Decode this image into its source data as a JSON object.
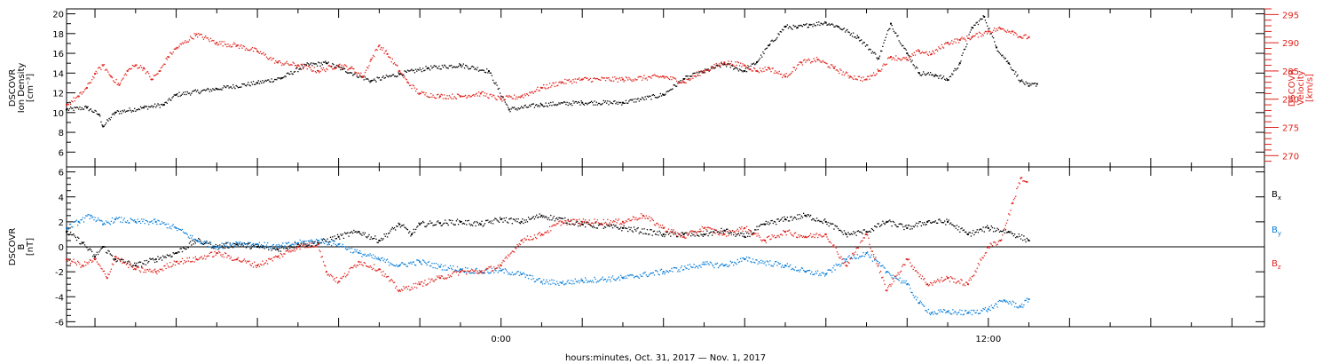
{
  "figure": {
    "xlabel": "hours:minutes, Oct. 31, 2017 — Nov.  1, 2017"
  },
  "colors": {
    "black": "#000000",
    "red": "#e0231c",
    "blue": "#0a7ed8"
  },
  "chart_data": [
    {
      "type": "scatter",
      "panel": "top",
      "ylabel_left": [
        "DSCOVR",
        "Ion  Density",
        "[cm⁻³]"
      ],
      "ylabel_right": [
        "DSCOVR",
        "Velocity",
        "[km/s]"
      ],
      "x_unit": "hours relative to 2017-11-01 00:00",
      "xlim": [
        -10.7,
        18.8
      ],
      "x_ticklabels": [
        {
          "x": 0,
          "label": "0:00"
        },
        {
          "x": 12,
          "label": "12:00"
        }
      ],
      "ylim_left": [
        4.5,
        20.5
      ],
      "yticks_left": [
        6,
        8,
        10,
        12,
        14,
        16,
        18,
        20
      ],
      "ylim_right": [
        268,
        296
      ],
      "yticks_right": [
        270,
        275,
        280,
        285,
        290,
        295
      ],
      "grid": false,
      "series": [
        {
          "axis": "left",
          "color": "black",
          "x": [
            -10.7,
            -10.2,
            -9.9,
            -9.8,
            -9.5,
            -8.8,
            -8.3,
            -8.0,
            -7.0,
            -6.0,
            -5.4,
            -4.8,
            -4.3,
            -3.9,
            -3.2,
            -2.5,
            -1.8,
            -1.0,
            -0.3,
            0.2,
            1.0,
            2.0,
            3.0,
            4.0,
            4.5,
            5.5,
            6.0,
            6.3,
            6.6,
            7.0,
            7.3,
            7.6,
            8.0,
            8.3,
            8.8,
            9.3,
            9.6,
            10.0,
            10.3,
            10.7,
            11.0,
            11.3,
            11.6,
            11.9,
            12.2,
            12.5,
            12.8,
            13.0,
            13.2
          ],
          "y": [
            10.3,
            10.5,
            9.8,
            8.6,
            10.0,
            10.5,
            10.8,
            11.8,
            12.4,
            13.0,
            13.5,
            14.8,
            15.0,
            14.4,
            13.2,
            13.9,
            14.5,
            14.8,
            14.2,
            10.3,
            10.8,
            11.0,
            11.0,
            11.8,
            13.4,
            14.9,
            14.2,
            15.1,
            16.8,
            18.7,
            18.6,
            18.9,
            19.1,
            18.7,
            17.6,
            15.5,
            19.0,
            16.0,
            14.0,
            13.8,
            13.3,
            15.0,
            18.6,
            19.7,
            16.6,
            15.0,
            13.2,
            12.7,
            12.9
          ]
        },
        {
          "axis": "right",
          "color": "red",
          "x": [
            -10.7,
            -10.4,
            -10.2,
            -10.0,
            -9.8,
            -9.6,
            -9.4,
            -9.2,
            -9.0,
            -8.8,
            -8.6,
            -8.4,
            -8.2,
            -8.0,
            -7.5,
            -7.0,
            -6.5,
            -6.0,
            -5.5,
            -5.0,
            -4.5,
            -4.0,
            -3.7,
            -3.4,
            -3.2,
            -3.0,
            -2.8,
            -2.5,
            -2.3,
            -2.0,
            -1.5,
            -1.0,
            -0.5,
            0.0,
            0.5,
            1.0,
            1.5,
            2.0,
            3.0,
            4.0,
            4.5,
            5.0,
            5.5,
            6.0,
            6.3,
            6.6,
            7.0,
            7.4,
            7.8,
            8.2,
            8.6,
            9.0,
            9.3,
            9.6,
            10.0,
            10.3,
            10.6,
            11.0,
            11.3,
            11.6,
            12.0,
            12.3,
            12.6,
            12.8,
            13.0
          ],
          "y": [
            279.0,
            280.5,
            282.0,
            284.5,
            286.0,
            284.0,
            282.5,
            285.0,
            286.0,
            285.5,
            283.5,
            285.0,
            287.5,
            289.0,
            291.5,
            290.0,
            289.5,
            288.5,
            286.5,
            286.0,
            285.0,
            286.0,
            285.5,
            284.0,
            287.0,
            289.5,
            288.0,
            285.0,
            283.0,
            281.0,
            280.5,
            280.5,
            281.0,
            280.0,
            280.5,
            282.0,
            283.0,
            283.5,
            283.5,
            284.0,
            283.0,
            285.0,
            286.5,
            286.0,
            285.0,
            285.5,
            284.0,
            286.5,
            287.0,
            285.5,
            284.0,
            283.5,
            285.0,
            287.5,
            287.0,
            288.5,
            288.0,
            290.0,
            290.5,
            291.0,
            292.0,
            292.5,
            292.0,
            291.0,
            291.0
          ]
        }
      ]
    },
    {
      "type": "scatter",
      "panel": "bottom",
      "ylabel_left": [
        "DSCOVR",
        "B",
        "[nT]"
      ],
      "x_unit": "hours relative to 2017-11-01 00:00",
      "xlim": [
        -10.7,
        18.8
      ],
      "x_ticklabels": [
        {
          "x": 0,
          "label": "0:00"
        },
        {
          "x": 12,
          "label": "12:00"
        }
      ],
      "ylim": [
        -6.4,
        6.4
      ],
      "yticks": [
        -6,
        -4,
        -2,
        0,
        2,
        4,
        6
      ],
      "zero_line": true,
      "grid": false,
      "legend_placement": "right",
      "series": [
        {
          "name": "B",
          "subscript": "x",
          "color": "black",
          "x": [
            -10.7,
            -10.3,
            -10.0,
            -9.8,
            -9.5,
            -9.0,
            -8.5,
            -8.0,
            -7.5,
            -7.0,
            -6.5,
            -6.0,
            -5.5,
            -5.0,
            -4.5,
            -4.0,
            -3.5,
            -3.0,
            -2.5,
            -2.2,
            -2.0,
            -1.5,
            -1.0,
            -0.5,
            0.0,
            0.5,
            1.0,
            2.0,
            3.0,
            4.0,
            4.5,
            5.0,
            5.5,
            6.0,
            6.5,
            7.0,
            7.5,
            8.0,
            8.5,
            9.0,
            9.5,
            10.0,
            10.5,
            11.0,
            11.5,
            12.0,
            12.5,
            13.0
          ],
          "y": [
            1.2,
            0.3,
            -0.8,
            0.0,
            -1.0,
            -1.5,
            -1.0,
            -0.5,
            0.5,
            0.0,
            0.2,
            0.0,
            -0.2,
            0.2,
            0.3,
            0.8,
            1.2,
            0.5,
            1.8,
            1.0,
            1.8,
            1.9,
            2.0,
            1.8,
            2.2,
            2.0,
            2.5,
            1.8,
            1.5,
            1.0,
            1.0,
            1.0,
            1.3,
            0.8,
            1.8,
            2.2,
            2.5,
            2.0,
            1.0,
            1.2,
            2.0,
            1.5,
            2.0,
            2.0,
            1.0,
            1.5,
            1.2,
            0.5
          ]
        },
        {
          "name": "B",
          "subscript": "y",
          "color": "blue",
          "x": [
            -10.7,
            -10.4,
            -10.1,
            -9.8,
            -9.5,
            -9.0,
            -8.5,
            -8.0,
            -7.5,
            -7.0,
            -6.5,
            -6.0,
            -5.5,
            -5.0,
            -4.5,
            -4.0,
            -3.5,
            -3.0,
            -2.5,
            -2.0,
            -1.5,
            -1.0,
            -0.5,
            0.0,
            0.5,
            1.0,
            1.5,
            2.0,
            3.0,
            4.0,
            5.0,
            5.5,
            6.0,
            7.0,
            7.5,
            8.0,
            8.5,
            9.0,
            9.5,
            10.0,
            10.3,
            10.6,
            11.0,
            11.5,
            12.0,
            12.4,
            12.8,
            13.0
          ],
          "y": [
            1.5,
            2.0,
            2.5,
            1.8,
            2.2,
            2.0,
            2.0,
            1.5,
            0.5,
            0.0,
            0.3,
            0.2,
            0.0,
            0.3,
            0.5,
            0.2,
            -0.5,
            -1.0,
            -1.5,
            -1.2,
            -1.6,
            -1.8,
            -2.0,
            -1.9,
            -2.2,
            -2.8,
            -2.9,
            -2.7,
            -2.5,
            -2.0,
            -1.4,
            -1.5,
            -1.0,
            -1.5,
            -2.0,
            -2.2,
            -1.0,
            -0.5,
            -2.0,
            -3.0,
            -4.5,
            -5.3,
            -5.2,
            -5.3,
            -5.0,
            -4.3,
            -4.8,
            -4.2
          ]
        },
        {
          "name": "B",
          "subscript": "z",
          "color": "red",
          "x": [
            -10.7,
            -10.3,
            -10.0,
            -9.7,
            -9.5,
            -9.0,
            -8.5,
            -8.0,
            -7.5,
            -7.0,
            -6.5,
            -6.0,
            -5.5,
            -5.0,
            -4.5,
            -4.3,
            -4.0,
            -3.5,
            -3.0,
            -2.5,
            -2.0,
            -1.5,
            -1.0,
            -0.5,
            0.0,
            0.5,
            1.0,
            1.5,
            2.0,
            3.0,
            3.5,
            4.0,
            4.5,
            5.0,
            5.5,
            6.0,
            6.5,
            7.0,
            7.5,
            8.0,
            8.5,
            9.0,
            9.5,
            10.0,
            10.5,
            11.0,
            11.5,
            12.0,
            12.3,
            12.6,
            12.8,
            12.95
          ],
          "y": [
            -1.0,
            -1.5,
            -1.0,
            -2.5,
            -0.8,
            -1.8,
            -2.0,
            -1.2,
            -1.0,
            -0.5,
            -1.0,
            -1.5,
            -0.8,
            0.0,
            0.2,
            -2.0,
            -2.8,
            -1.2,
            -1.8,
            -3.5,
            -3.0,
            -2.5,
            -2.0,
            -2.0,
            -1.5,
            0.5,
            1.0,
            2.0,
            2.0,
            2.0,
            2.5,
            1.5,
            0.8,
            1.5,
            1.0,
            1.5,
            0.5,
            1.2,
            0.8,
            1.0,
            -1.5,
            1.0,
            -3.5,
            -1.0,
            -3.0,
            -2.5,
            -3.0,
            0.0,
            0.5,
            3.5,
            5.5,
            5.2
          ]
        }
      ]
    }
  ]
}
